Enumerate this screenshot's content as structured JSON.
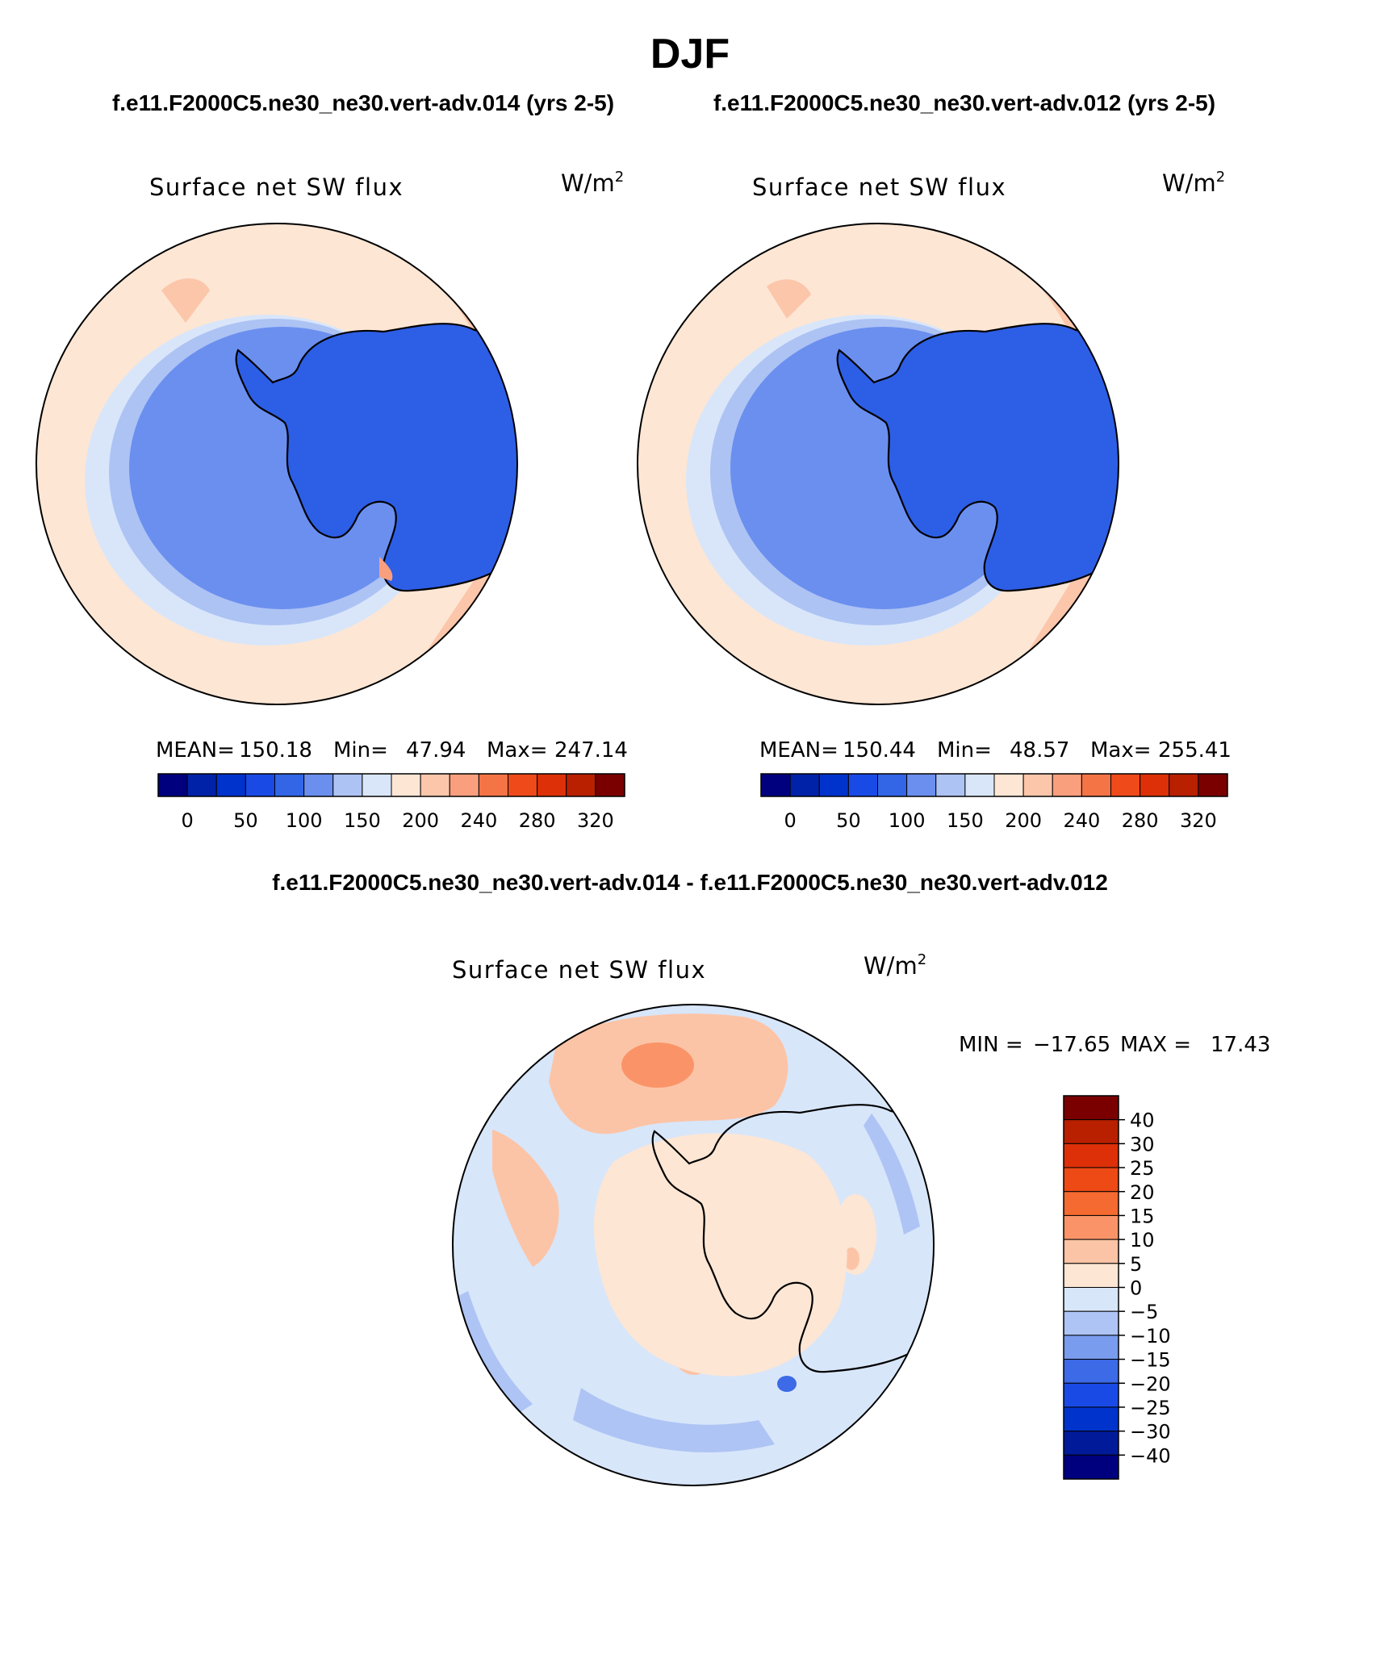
{
  "figure": {
    "title": "DJF",
    "case_a": "f.e11.F2000C5.ne30_ne30.vert-adv.014 (yrs 2-5)",
    "case_b": "f.e11.F2000C5.ne30_ne30.vert-adv.012 (yrs 2-5)",
    "diff_title": "f.e11.F2000C5.ne30_ne30.vert-adv.014 - f.e11.F2000C5.ne30_ne30.vert-adv.012"
  },
  "colors": {
    "abs_scale": [
      "#00007f",
      "#0022a8",
      "#0033cc",
      "#1a4ae6",
      "#3366e6",
      "#6b8fef",
      "#adc3f4",
      "#d9e6fa",
      "#fde6d4",
      "#fcc6ab",
      "#fa9f7d",
      "#f47446",
      "#ee4a1a",
      "#dd3008",
      "#b82000",
      "#7a0000"
    ],
    "diff_scale": [
      "#00007f",
      "#001a99",
      "#0033cc",
      "#1a4ae6",
      "#3d6ae6",
      "#7a9cef",
      "#aec4f4",
      "#d8e6fa",
      "#fde6d4",
      "#fcc4a6",
      "#fa9468",
      "#f46a30",
      "#ee4a16",
      "#dd3008",
      "#b82000",
      "#7a0000"
    ],
    "continent_abs": "#2d5ee6",
    "ocean_abs": "#fde6d4",
    "ocean_diff": "#d8e6fa"
  },
  "chart_data": [
    {
      "type": "heatmap",
      "projection": "south-polar-stereographic",
      "title": "Surface net SW flux",
      "units_base": "W/m",
      "units_exp": "2",
      "stats": {
        "mean_label": "MEAN=",
        "mean": "150.18",
        "min_label": "Min=",
        "min": "47.94",
        "max_label": "Max=",
        "max": "247.14"
      },
      "levels": [
        0,
        25,
        50,
        75,
        100,
        125,
        150,
        175,
        200,
        220,
        240,
        260,
        280,
        300,
        320
      ],
      "tick_labels": [
        "0",
        "50",
        "100",
        "150",
        "200",
        "240",
        "280",
        "320"
      ],
      "tick_levels": [
        0,
        50,
        100,
        150,
        200,
        240,
        280,
        320
      ]
    },
    {
      "type": "heatmap",
      "projection": "south-polar-stereographic",
      "title": "Surface net SW flux",
      "units_base": "W/m",
      "units_exp": "2",
      "stats": {
        "mean_label": "MEAN=",
        "mean": "150.44",
        "min_label": "Min=",
        "min": "48.57",
        "max_label": "Max=",
        "max": "255.41"
      },
      "levels": [
        0,
        25,
        50,
        75,
        100,
        125,
        150,
        175,
        200,
        220,
        240,
        260,
        280,
        300,
        320
      ],
      "tick_labels": [
        "0",
        "50",
        "100",
        "150",
        "200",
        "240",
        "280",
        "320"
      ],
      "tick_levels": [
        0,
        50,
        100,
        150,
        200,
        240,
        280,
        320
      ]
    },
    {
      "type": "heatmap",
      "projection": "south-polar-stereographic",
      "title": "Surface net SW flux",
      "units_base": "W/m",
      "units_exp": "2",
      "stats": {
        "min_label": "MIN =",
        "min": "−17.65",
        "max_label": "MAX =",
        "max": "17.43"
      },
      "levels": [
        -40,
        -30,
        -25,
        -20,
        -15,
        -10,
        -5,
        0,
        5,
        10,
        15,
        20,
        25,
        30,
        40
      ],
      "tick_labels": [
        "40",
        "30",
        "25",
        "20",
        "15",
        "10",
        "5",
        "0",
        "−5",
        "−10",
        "−15",
        "−20",
        "−25",
        "−30",
        "−40"
      ]
    }
  ]
}
